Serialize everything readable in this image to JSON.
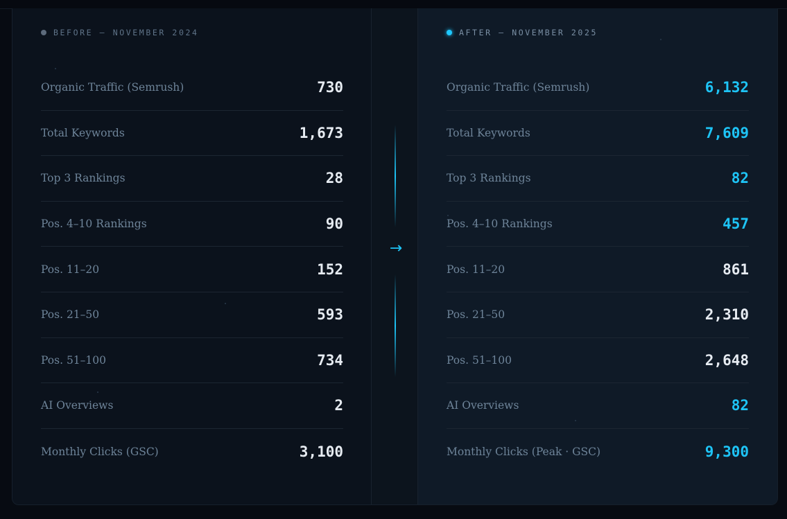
{
  "before": {
    "header": "BEFORE — NOVEMBER 2024",
    "rows": [
      {
        "label": "Organic Traffic (Semrush)",
        "value": "730"
      },
      {
        "label": "Total Keywords",
        "value": "1,673"
      },
      {
        "label": "Top 3 Rankings",
        "value": "28"
      },
      {
        "label": "Pos. 4–10 Rankings",
        "value": "90"
      },
      {
        "label": "Pos. 11–20",
        "value": "152"
      },
      {
        "label": "Pos. 21–50",
        "value": "593"
      },
      {
        "label": "Pos. 51–100",
        "value": "734"
      },
      {
        "label": "AI Overviews",
        "value": "2"
      },
      {
        "label": "Monthly Clicks (GSC)",
        "value": "3,100"
      }
    ]
  },
  "divider": {
    "arrow_icon": "arrow-right-icon",
    "arrow_glyph": "→"
  },
  "after": {
    "header": "AFTER — NOVEMBER 2025",
    "rows": [
      {
        "label": "Organic Traffic (Semrush)",
        "value": "6,132"
      },
      {
        "label": "Total Keywords",
        "value": "7,609"
      },
      {
        "label": "Top 3 Rankings",
        "value": "82"
      },
      {
        "label": "Pos. 4–10 Rankings",
        "value": "457"
      },
      {
        "label": "Pos. 11–20",
        "value": "861"
      },
      {
        "label": "Pos. 21–50",
        "value": "2,310"
      },
      {
        "label": "Pos. 51–100",
        "value": "2,648"
      },
      {
        "label": "AI Overviews",
        "value": "82"
      },
      {
        "label": "Monthly Clicks (Peak · GSC)",
        "value": "9,300"
      }
    ]
  },
  "colors": {
    "accent": "#1ec4f6",
    "background": "#0b121c",
    "after_panel": "#0f1a27",
    "label": "#6e8499",
    "value": "#e6ebf1"
  }
}
